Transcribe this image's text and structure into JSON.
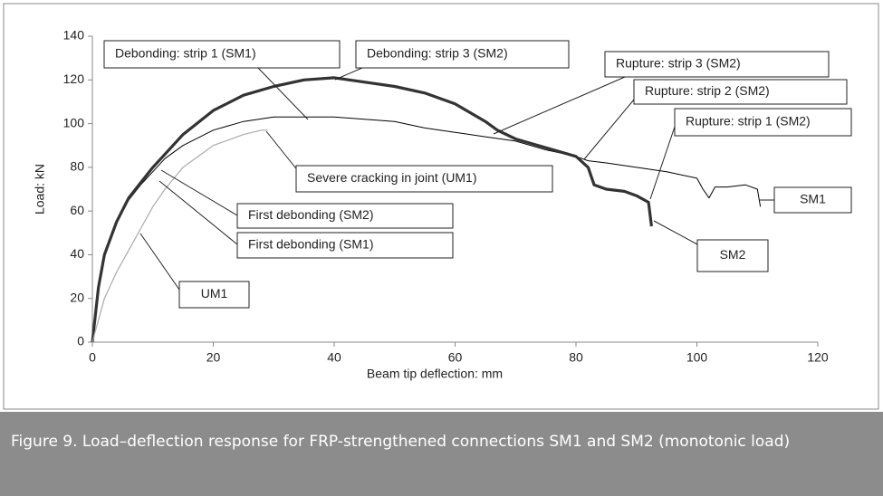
{
  "chart_data": {
    "type": "line",
    "x_label": "Beam tip deflection: mm",
    "y_label": "Load: kN",
    "xlim": [
      0,
      120
    ],
    "xticks": [
      0,
      20,
      40,
      60,
      80,
      100,
      120
    ],
    "ylim": [
      0,
      140
    ],
    "yticks": [
      0,
      20,
      40,
      60,
      80,
      100,
      120,
      140
    ],
    "series": [
      {
        "name": "SM1",
        "color": "#000000",
        "x": [
          0,
          1,
          2,
          4,
          6,
          8,
          10,
          12,
          15,
          20,
          25,
          30,
          35,
          40,
          45,
          50,
          55,
          60,
          65,
          70,
          75,
          80,
          82,
          85,
          90,
          95,
          100,
          101,
          102,
          103,
          105,
          108,
          110,
          110.5
        ],
        "values": [
          0,
          25,
          40,
          55,
          65,
          72,
          78,
          84,
          90,
          97,
          101,
          103,
          103,
          103,
          102,
          101,
          98,
          96,
          94,
          92,
          88,
          85,
          83,
          82,
          80,
          78,
          75,
          70,
          66,
          71,
          71,
          72,
          70,
          62
        ]
      },
      {
        "name": "SM2",
        "color": "#333333",
        "x": [
          0,
          1,
          2,
          4,
          6,
          8,
          10,
          12,
          15,
          20,
          25,
          30,
          35,
          40,
          45,
          50,
          55,
          60,
          65,
          67,
          70,
          75,
          80,
          82,
          83,
          85,
          88,
          90,
          92,
          92.5
        ],
        "values": [
          0,
          25,
          40,
          55,
          66,
          73,
          80,
          86,
          95,
          106,
          113,
          117,
          120,
          121,
          119,
          117,
          114,
          109,
          101,
          97,
          93,
          89,
          85,
          80,
          72,
          70,
          69,
          67,
          64,
          53
        ]
      },
      {
        "name": "UM1",
        "color": "#aaaaaa",
        "x": [
          0,
          2,
          4,
          6,
          8,
          10,
          12,
          15,
          18,
          20,
          25,
          28,
          29
        ],
        "values": [
          0,
          20,
          32,
          42,
          52,
          62,
          70,
          80,
          86,
          90,
          95,
          97,
          97
        ]
      }
    ],
    "annotations": [
      "Debonding: strip 1 (SM1)",
      "Debonding: strip 3 (SM2)",
      "Rupture: strip 3 (SM2)",
      "Rupture: strip 2 (SM2)",
      "Rupture: strip 1 (SM2)",
      "Severe cracking in joint (UM1)",
      "First debonding (SM2)",
      "First debonding (SM1)"
    ]
  },
  "caption": "Figure 9. Load–deflection response for FRP-strengthened connections SM1 and SM2 (monotonic load)"
}
